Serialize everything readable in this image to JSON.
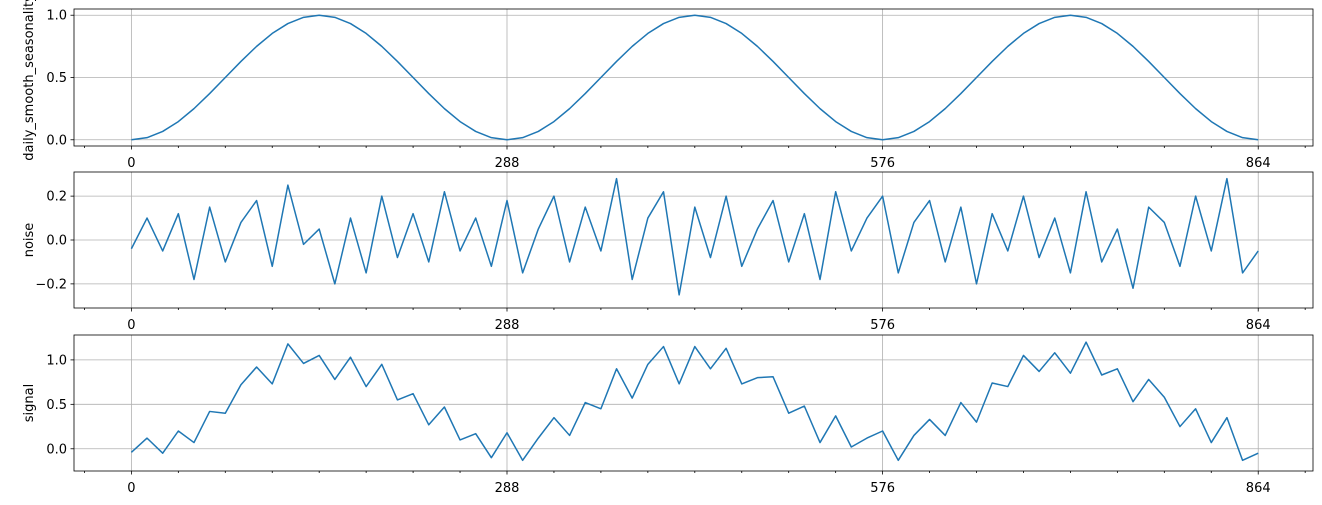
{
  "chart_data": [
    {
      "type": "line",
      "ylabel": "daily_smooth_seasonality",
      "x_ticks": [
        0,
        288,
        576,
        864
      ],
      "y_ticks": [
        0.0,
        0.5,
        1.0
      ],
      "y_tick_labels": [
        "0.0",
        "0.5",
        "1.0"
      ],
      "xlim": [
        -44,
        906
      ],
      "ylim": [
        -0.05,
        1.05
      ],
      "grid": true,
      "series": [
        {
          "color": "#1f77b4",
          "x": [
            0,
            12,
            24,
            36,
            48,
            60,
            72,
            84,
            96,
            108,
            120,
            132,
            144,
            156,
            168,
            180,
            192,
            204,
            216,
            228,
            240,
            252,
            264,
            276,
            288,
            300,
            312,
            324,
            336,
            348,
            360,
            372,
            384,
            396,
            408,
            420,
            432,
            444,
            456,
            468,
            480,
            492,
            504,
            516,
            528,
            540,
            552,
            564,
            576,
            588,
            600,
            612,
            624,
            636,
            648,
            660,
            672,
            684,
            696,
            708,
            720,
            732,
            744,
            756,
            768,
            780,
            792,
            804,
            816,
            828,
            840,
            852,
            864
          ],
          "values": [
            0.0,
            0.017,
            0.067,
            0.146,
            0.25,
            0.371,
            0.5,
            0.629,
            0.75,
            0.854,
            0.933,
            0.983,
            1.0,
            0.983,
            0.933,
            0.854,
            0.75,
            0.629,
            0.5,
            0.371,
            0.25,
            0.146,
            0.067,
            0.017,
            0.0,
            0.017,
            0.067,
            0.146,
            0.25,
            0.371,
            0.5,
            0.629,
            0.75,
            0.854,
            0.933,
            0.983,
            1.0,
            0.983,
            0.933,
            0.854,
            0.75,
            0.629,
            0.5,
            0.371,
            0.25,
            0.146,
            0.067,
            0.017,
            0.0,
            0.017,
            0.067,
            0.146,
            0.25,
            0.371,
            0.5,
            0.629,
            0.75,
            0.854,
            0.933,
            0.983,
            1.0,
            0.983,
            0.933,
            0.854,
            0.75,
            0.629,
            0.5,
            0.371,
            0.25,
            0.146,
            0.067,
            0.017,
            0.0
          ]
        }
      ]
    },
    {
      "type": "line",
      "ylabel": "noise",
      "x_ticks": [
        0,
        288,
        576,
        864
      ],
      "y_ticks": [
        -0.2,
        0.0,
        0.2
      ],
      "y_tick_labels": [
        "−0.2",
        "0.0",
        "0.2"
      ],
      "xlim": [
        -44,
        906
      ],
      "ylim": [
        -0.31,
        0.31
      ],
      "grid": true,
      "series": [
        {
          "color": "#1f77b4",
          "x": [
            0,
            12,
            24,
            36,
            48,
            60,
            72,
            84,
            96,
            108,
            120,
            132,
            144,
            156,
            168,
            180,
            192,
            204,
            216,
            228,
            240,
            252,
            264,
            276,
            288,
            300,
            312,
            324,
            336,
            348,
            360,
            372,
            384,
            396,
            408,
            420,
            432,
            444,
            456,
            468,
            480,
            492,
            504,
            516,
            528,
            540,
            552,
            564,
            576,
            588,
            600,
            612,
            624,
            636,
            648,
            660,
            672,
            684,
            696,
            708,
            720,
            732,
            744,
            756,
            768,
            780,
            792,
            804,
            816,
            828,
            840,
            852,
            864
          ],
          "values": [
            -0.04,
            0.1,
            -0.05,
            0.12,
            -0.18,
            0.15,
            -0.1,
            0.08,
            0.18,
            -0.12,
            0.25,
            -0.02,
            0.05,
            -0.2,
            0.1,
            -0.15,
            0.2,
            -0.08,
            0.12,
            -0.1,
            0.22,
            -0.05,
            0.1,
            -0.12,
            0.18,
            -0.15,
            0.05,
            0.2,
            -0.1,
            0.15,
            -0.05,
            0.28,
            -0.18,
            0.1,
            0.22,
            -0.25,
            0.15,
            -0.08,
            0.2,
            -0.12,
            0.05,
            0.18,
            -0.1,
            0.12,
            -0.18,
            0.22,
            -0.05,
            0.1,
            0.2,
            -0.15,
            0.08,
            0.18,
            -0.1,
            0.15,
            -0.2,
            0.12,
            -0.05,
            0.2,
            -0.08,
            0.1,
            -0.15,
            0.22,
            -0.1,
            0.05,
            -0.22,
            0.15,
            0.08,
            -0.12,
            0.2,
            -0.05,
            0.28,
            -0.15,
            -0.05
          ]
        }
      ]
    },
    {
      "type": "line",
      "ylabel": "signal",
      "x_ticks": [
        0,
        288,
        576,
        864
      ],
      "y_ticks": [
        0.0,
        0.5,
        1.0
      ],
      "y_tick_labels": [
        "0.0",
        "0.5",
        "1.0"
      ],
      "xlim": [
        -44,
        906
      ],
      "ylim": [
        -0.25,
        1.28
      ],
      "grid": true,
      "series": [
        {
          "color": "#1f77b4",
          "x": [
            0,
            12,
            24,
            36,
            48,
            60,
            72,
            84,
            96,
            108,
            120,
            132,
            144,
            156,
            168,
            180,
            192,
            204,
            216,
            228,
            240,
            252,
            264,
            276,
            288,
            300,
            312,
            324,
            336,
            348,
            360,
            372,
            384,
            396,
            408,
            420,
            432,
            444,
            456,
            468,
            480,
            492,
            504,
            516,
            528,
            540,
            552,
            564,
            576,
            588,
            600,
            612,
            624,
            636,
            648,
            660,
            672,
            684,
            696,
            708,
            720,
            732,
            744,
            756,
            768,
            780,
            792,
            804,
            816,
            828,
            840,
            852,
            864
          ],
          "values": [
            -0.04,
            0.12,
            -0.05,
            0.2,
            0.07,
            0.42,
            0.4,
            0.72,
            0.92,
            0.73,
            1.18,
            0.96,
            1.05,
            0.78,
            1.03,
            0.7,
            0.95,
            0.55,
            0.62,
            0.27,
            0.47,
            0.1,
            0.17,
            -0.1,
            0.18,
            -0.13,
            0.12,
            0.35,
            0.15,
            0.52,
            0.45,
            0.9,
            0.57,
            0.95,
            1.15,
            0.73,
            1.15,
            0.9,
            1.13,
            0.73,
            0.8,
            0.81,
            0.4,
            0.48,
            0.07,
            0.37,
            0.02,
            0.12,
            0.2,
            -0.13,
            0.15,
            0.33,
            0.15,
            0.52,
            0.3,
            0.74,
            0.7,
            1.05,
            0.87,
            1.08,
            0.85,
            1.2,
            0.83,
            0.9,
            0.53,
            0.78,
            0.58,
            0.25,
            0.45,
            0.07,
            0.35,
            -0.13,
            -0.05
          ]
        }
      ]
    }
  ]
}
